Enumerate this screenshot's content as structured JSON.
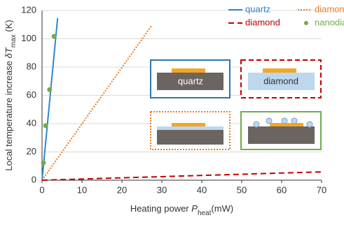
{
  "chart_data": {
    "type": "line",
    "xlabel": [
      "Heating power ",
      "P",
      "heat",
      "(mW)"
    ],
    "ylabel": [
      "Local temperature increase ",
      "δT",
      "max",
      " (K)"
    ],
    "xlim": [
      0,
      70
    ],
    "xticks": [
      0,
      10,
      20,
      30,
      40,
      50,
      60,
      70
    ],
    "ylim": [
      0,
      120
    ],
    "yticks": [
      0,
      20,
      40,
      60,
      80,
      100,
      120
    ],
    "grid": true,
    "series": [
      {
        "name": "quartz",
        "color": "#2e86d0",
        "type": "line",
        "linestyle": "solid",
        "x": [
          0,
          3.9
        ],
        "values": [
          0,
          114.6
        ]
      },
      {
        "name": "diamond on quartz",
        "color": "#e87d1e",
        "type": "line",
        "linestyle": "dotted",
        "x": [
          0,
          27.5
        ],
        "values": [
          0,
          109.6
        ]
      },
      {
        "name": "diamond",
        "color": "#c00000",
        "type": "line",
        "linestyle": "dashed",
        "x": [
          0,
          70
        ],
        "values": [
          0,
          5.9
        ]
      },
      {
        "name": "nanodiamonds",
        "color": "#70ad47",
        "type": "scatter",
        "x": [
          0.35,
          0.9,
          1.9,
          3.0
        ],
        "values": [
          12.3,
          38.5,
          64,
          101.7
        ]
      }
    ],
    "inset_labels": [
      "quartz",
      "diamond"
    ]
  }
}
